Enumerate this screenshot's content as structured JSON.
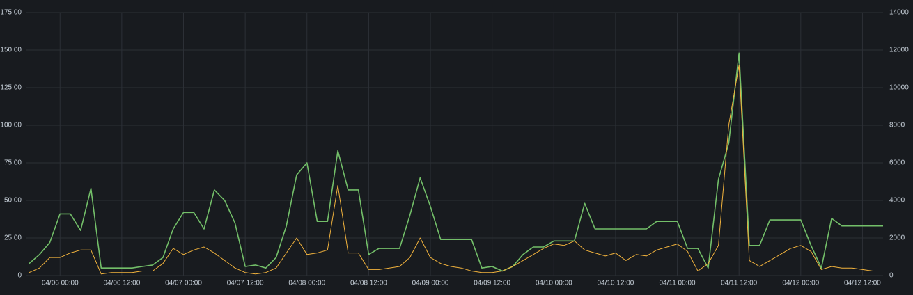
{
  "chart_data": {
    "type": "line",
    "x": [
      "04/05 18:00",
      "04/05 20:00",
      "04/05 22:00",
      "04/06 00:00",
      "04/06 02:00",
      "04/06 04:00",
      "04/06 06:00",
      "04/06 08:00",
      "04/06 10:00",
      "04/06 12:00",
      "04/06 14:00",
      "04/06 16:00",
      "04/06 18:00",
      "04/06 20:00",
      "04/06 22:00",
      "04/07 00:00",
      "04/07 02:00",
      "04/07 04:00",
      "04/07 06:00",
      "04/07 08:00",
      "04/07 10:00",
      "04/07 12:00",
      "04/07 14:00",
      "04/07 16:00",
      "04/07 18:00",
      "04/07 20:00",
      "04/07 22:00",
      "04/08 00:00",
      "04/08 02:00",
      "04/08 04:00",
      "04/08 06:00",
      "04/08 08:00",
      "04/08 10:00",
      "04/08 12:00",
      "04/08 14:00",
      "04/08 16:00",
      "04/08 18:00",
      "04/08 20:00",
      "04/08 22:00",
      "04/09 00:00",
      "04/09 02:00",
      "04/09 04:00",
      "04/09 06:00",
      "04/09 08:00",
      "04/09 10:00",
      "04/09 12:00",
      "04/09 14:00",
      "04/09 16:00",
      "04/09 18:00",
      "04/09 20:00",
      "04/09 22:00",
      "04/10 00:00",
      "04/10 02:00",
      "04/10 04:00",
      "04/10 06:00",
      "04/10 08:00",
      "04/10 10:00",
      "04/10 12:00",
      "04/10 14:00",
      "04/10 16:00",
      "04/10 18:00",
      "04/10 20:00",
      "04/10 22:00",
      "04/11 00:00",
      "04/11 02:00",
      "04/11 04:00",
      "04/11 06:00",
      "04/11 08:00",
      "04/11 10:00",
      "04/11 12:00",
      "04/11 14:00",
      "04/11 16:00",
      "04/11 18:00",
      "04/11 20:00",
      "04/11 22:00",
      "04/12 00:00",
      "04/12 02:00",
      "04/12 04:00",
      "04/12 06:00",
      "04/12 08:00",
      "04/12 10:00",
      "04/12 12:00",
      "04/12 14:00",
      "04/12 16:00"
    ],
    "series": [
      {
        "color": "#73bf69",
        "values": [
          8,
          14,
          22,
          41,
          41,
          30,
          58,
          5,
          5,
          5,
          5,
          6,
          7,
          12,
          31,
          42,
          42,
          31,
          57,
          50,
          35,
          6,
          7,
          5,
          12,
          33,
          67,
          75,
          36,
          36,
          83,
          57,
          57,
          14,
          18,
          18,
          18,
          40,
          65,
          46,
          24,
          24,
          24,
          24,
          5,
          6,
          3,
          6,
          14,
          19,
          19,
          23,
          23,
          23,
          48,
          31,
          31,
          31,
          31,
          31,
          31,
          36,
          36,
          36,
          18,
          18,
          5,
          64,
          88,
          148,
          20,
          20,
          37,
          37,
          37,
          37,
          20,
          5,
          38,
          33,
          33,
          33,
          33,
          33
        ]
      },
      {
        "color": "#f2b33d",
        "axis": "y2",
        "values": [
          160,
          400,
          960,
          960,
          1200,
          1360,
          1360,
          80,
          160,
          160,
          160,
          240,
          240,
          640,
          1440,
          1120,
          1360,
          1520,
          1200,
          800,
          400,
          160,
          80,
          160,
          400,
          1200,
          2000,
          1120,
          1200,
          1360,
          4800,
          1200,
          1200,
          320,
          320,
          400,
          480,
          960,
          2000,
          960,
          640,
          480,
          400,
          240,
          160,
          160,
          240,
          480,
          800,
          1120,
          1440,
          1680,
          1600,
          1840,
          1360,
          1200,
          1040,
          1200,
          800,
          1120,
          1040,
          1360,
          1520,
          1680,
          1280,
          240,
          640,
          1600,
          8000,
          11200,
          800,
          480,
          800,
          1120,
          1440,
          1600,
          1280,
          320,
          480,
          400,
          400,
          320,
          240,
          240
        ]
      }
    ],
    "xlim": [
      "04/05 17:20",
      "04/12 16:00"
    ],
    "xticks": [
      "04/06 00:00",
      "04/06 12:00",
      "04/07 00:00",
      "04/07 12:00",
      "04/08 00:00",
      "04/08 12:00",
      "04/09 00:00",
      "04/09 12:00",
      "04/10 00:00",
      "04/10 12:00",
      "04/11 00:00",
      "04/11 12:00",
      "04/12 00:00",
      "04/12 12:00"
    ],
    "ylim": [
      0,
      175
    ],
    "yticks": [
      0,
      {
        "value": 25,
        "label": "25.00"
      },
      {
        "value": 50,
        "label": "50.00"
      },
      {
        "value": 75,
        "label": "75.00"
      },
      {
        "value": 100,
        "label": "100.00"
      },
      {
        "value": 125,
        "label": "125.00"
      },
      {
        "value": 150,
        "label": "150.00"
      },
      {
        "value": 175,
        "label": "175.00"
      }
    ],
    "y2lim": [
      0,
      14000
    ],
    "y2ticks": [
      0,
      2000,
      4000,
      6000,
      8000,
      10000,
      12000,
      14000
    ],
    "grid": true
  }
}
